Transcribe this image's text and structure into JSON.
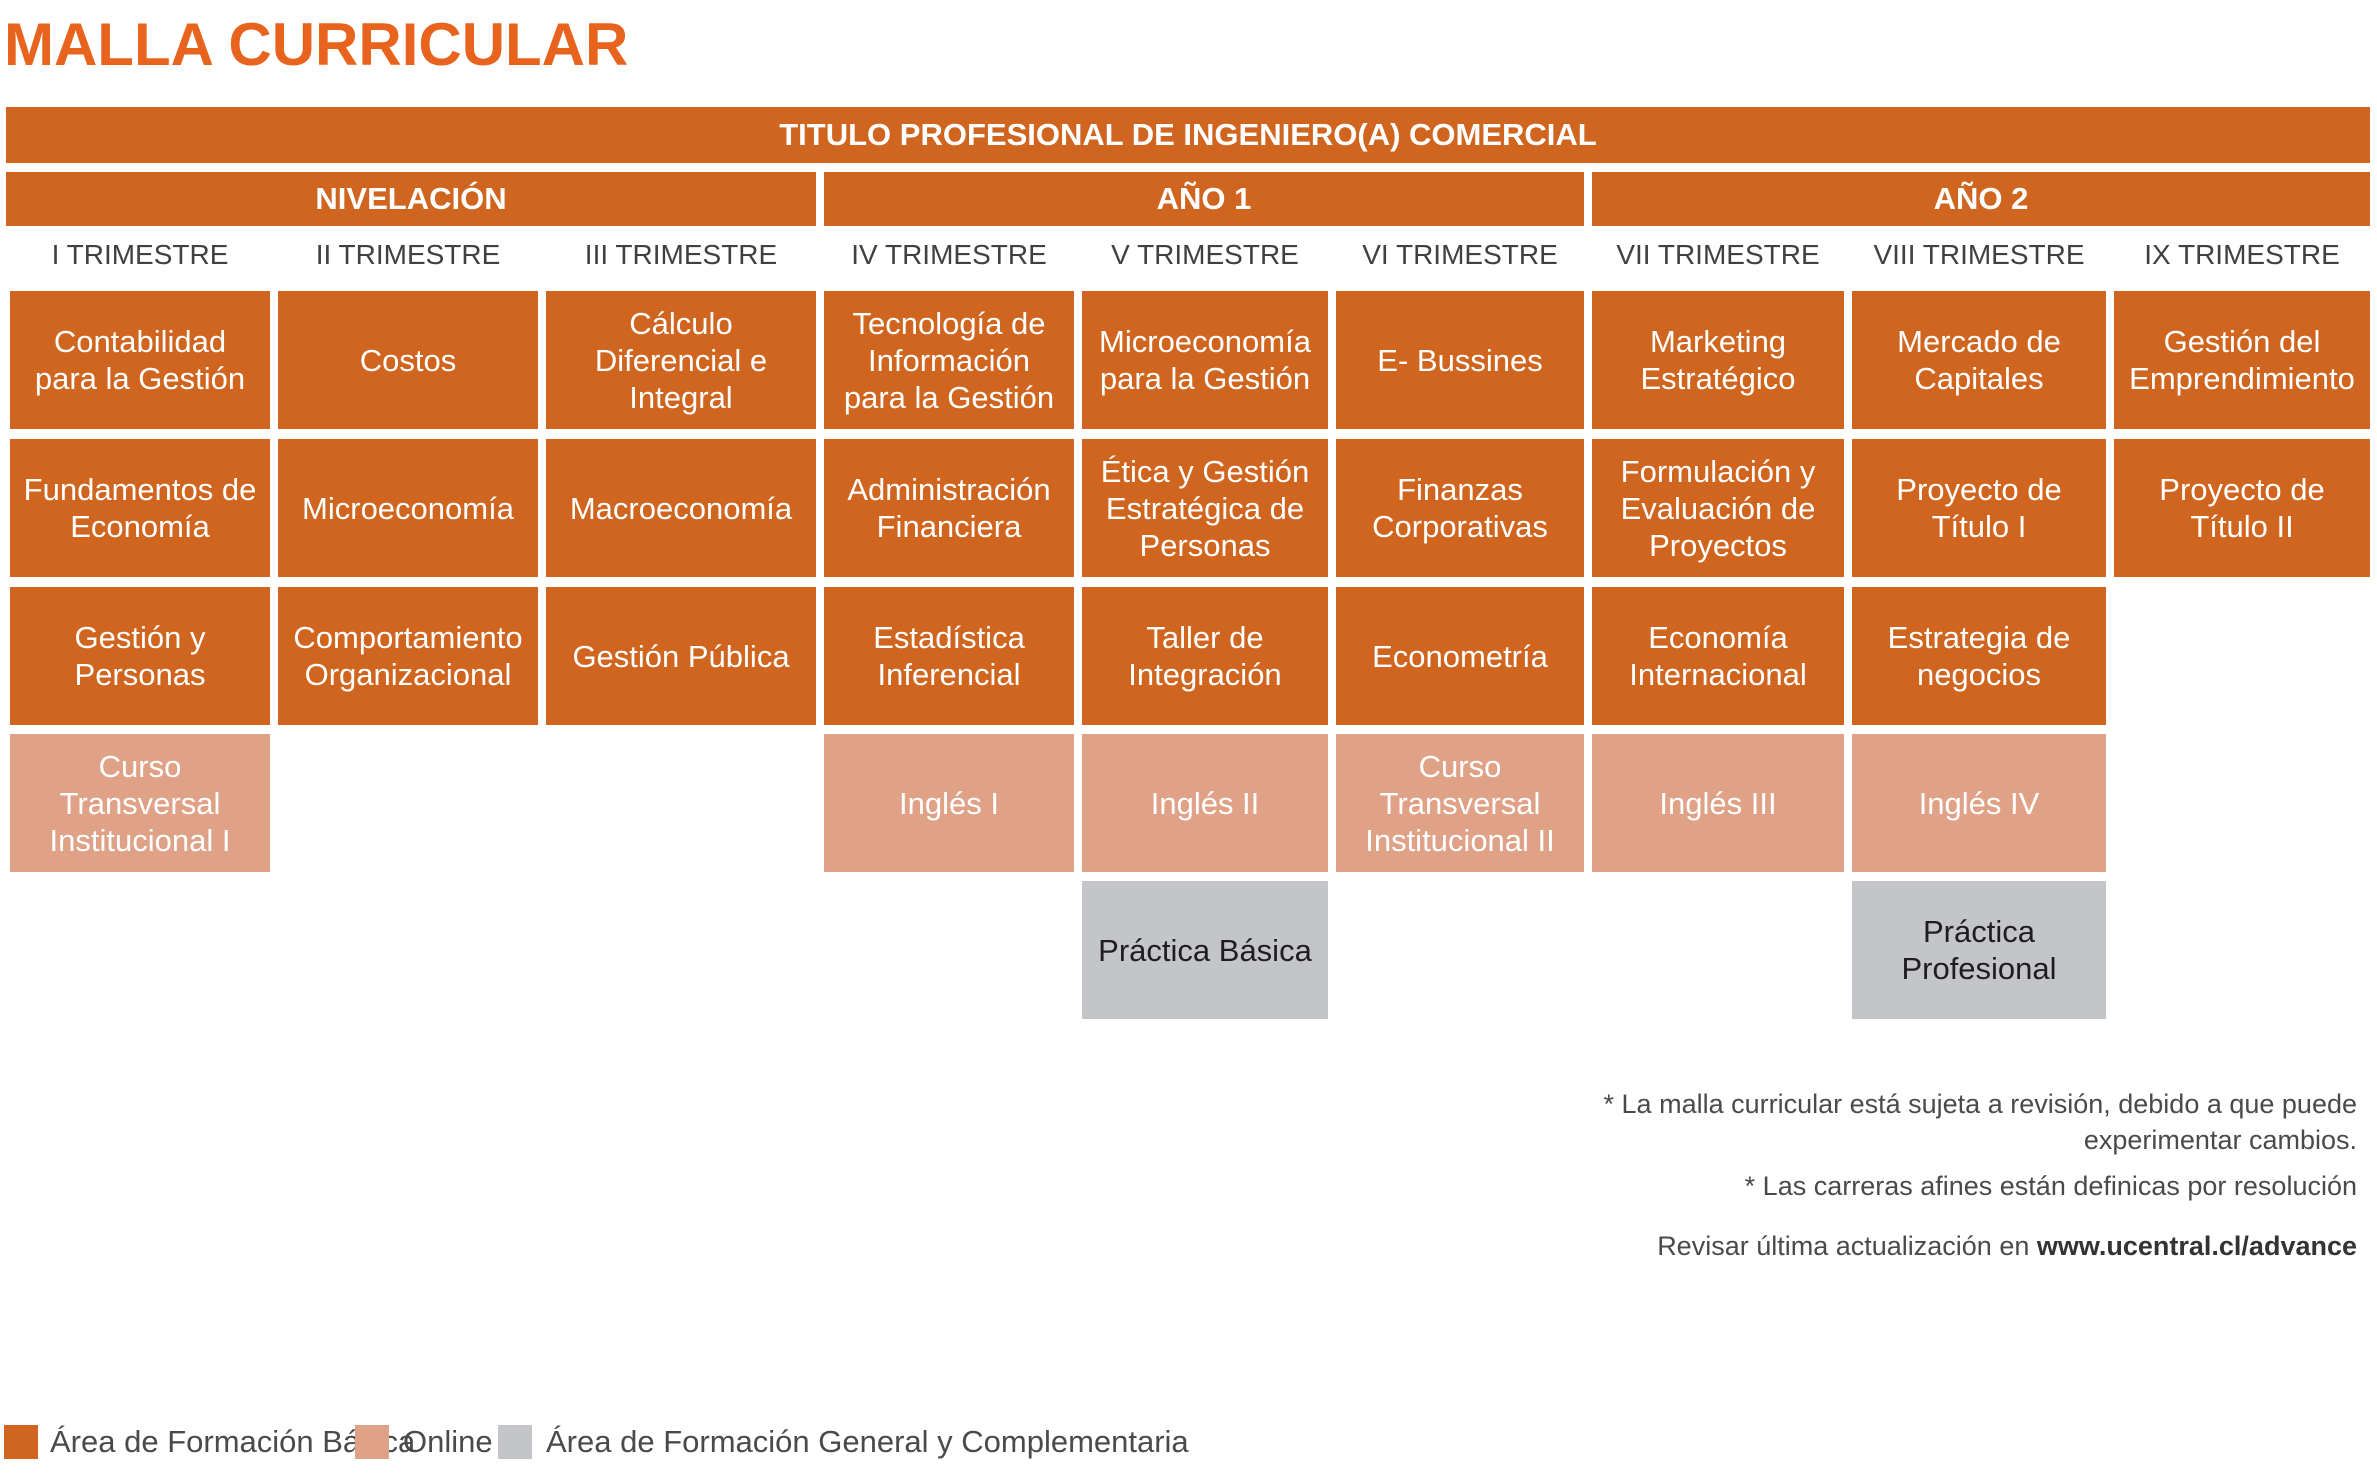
{
  "page_title": "MALLA CURRICULAR",
  "degree_title": "TITULO PROFESIONAL DE INGENIERO(A) COMERCIAL",
  "segments": [
    "NIVELACIÓN",
    "AÑO 1",
    "AÑO 2"
  ],
  "trimesters": [
    "I TRIMESTRE",
    "II TRIMESTRE",
    "III TRIMESTRE",
    "IV TRIMESTRE",
    "V TRIMESTRE",
    "VI TRIMESTRE",
    "VII TRIMESTRE",
    "VIII TRIMESTRE",
    "IX TRIMESTRE"
  ],
  "courses": [
    {
      "col": 0,
      "row": 0,
      "label": "Contabilidad para la Gestión",
      "area": "basic"
    },
    {
      "col": 0,
      "row": 1,
      "label": "Fundamentos de Economía",
      "area": "basic"
    },
    {
      "col": 0,
      "row": 2,
      "label": "Gestión y Personas",
      "area": "basic"
    },
    {
      "col": 0,
      "row": 3,
      "label": "Curso Transversal Institucional I",
      "area": "online"
    },
    {
      "col": 1,
      "row": 0,
      "label": "Costos",
      "area": "basic"
    },
    {
      "col": 1,
      "row": 1,
      "label": "Microeconomía",
      "area": "basic"
    },
    {
      "col": 1,
      "row": 2,
      "label": "Comportamiento Organizacional",
      "area": "basic"
    },
    {
      "col": 2,
      "row": 0,
      "label": "Cálculo Diferencial e Integral",
      "area": "basic"
    },
    {
      "col": 2,
      "row": 1,
      "label": "Macroeconomía",
      "area": "basic"
    },
    {
      "col": 2,
      "row": 2,
      "label": "Gestión Pública",
      "area": "basic"
    },
    {
      "col": 3,
      "row": 0,
      "label": "Tecnología de Información para la Gestión",
      "area": "basic"
    },
    {
      "col": 3,
      "row": 1,
      "label": "Administración Financiera",
      "area": "basic"
    },
    {
      "col": 3,
      "row": 2,
      "label": "Estadística Inferencial",
      "area": "basic"
    },
    {
      "col": 3,
      "row": 3,
      "label": "Inglés I",
      "area": "online"
    },
    {
      "col": 4,
      "row": 0,
      "label": "Microeconomía para la Gestión",
      "area": "basic"
    },
    {
      "col": 4,
      "row": 1,
      "label": "Ética y Gestión Estratégica de Personas",
      "area": "basic"
    },
    {
      "col": 4,
      "row": 2,
      "label": "Taller de Integración",
      "area": "basic"
    },
    {
      "col": 4,
      "row": 3,
      "label": "Inglés II",
      "area": "online"
    },
    {
      "col": 4,
      "row": 4,
      "label": "Práctica Básica",
      "area": "general"
    },
    {
      "col": 5,
      "row": 0,
      "label": "E- Bussines",
      "area": "basic"
    },
    {
      "col": 5,
      "row": 1,
      "label": "Finanzas Corporativas",
      "area": "basic"
    },
    {
      "col": 5,
      "row": 2,
      "label": "Econometría",
      "area": "basic"
    },
    {
      "col": 5,
      "row": 3,
      "label": "Curso Transversal Institucional II",
      "area": "online"
    },
    {
      "col": 6,
      "row": 0,
      "label": "Marketing Estratégico",
      "area": "basic"
    },
    {
      "col": 6,
      "row": 1,
      "label": "Formulación y Evaluación de Proyectos",
      "area": "basic"
    },
    {
      "col": 6,
      "row": 2,
      "label": "Economía Internacional",
      "area": "basic"
    },
    {
      "col": 6,
      "row": 3,
      "label": "Inglés III",
      "area": "online"
    },
    {
      "col": 7,
      "row": 0,
      "label": "Mercado de Capitales",
      "area": "basic"
    },
    {
      "col": 7,
      "row": 1,
      "label": "Proyecto de Título I",
      "area": "basic"
    },
    {
      "col": 7,
      "row": 2,
      "label": "Estrategia de negocios",
      "area": "basic"
    },
    {
      "col": 7,
      "row": 3,
      "label": "Inglés IV",
      "area": "online"
    },
    {
      "col": 7,
      "row": 4,
      "label": "Práctica Profesional",
      "area": "general"
    },
    {
      "col": 8,
      "row": 0,
      "label": "Gestión del Emprendimiento",
      "area": "basic"
    },
    {
      "col": 8,
      "row": 1,
      "label": "Proyecto de Título II",
      "area": "basic"
    }
  ],
  "notes": {
    "revision_line1": "* La malla curricular está sujeta a revisión, debido a que puede",
    "revision_line2": "experimentar cambios.",
    "afines": "* Las carreras afines están definicas por resolución",
    "update_prefix": "Revisar última actualización en ",
    "update_url": "www.ucentral.cl/advance"
  },
  "legend": [
    {
      "label": "Área de Formación Básica",
      "color": "#cf651f"
    },
    {
      "label": "Online",
      "color": "#e0a287"
    },
    {
      "label": "Área de Formación General y Complementaria",
      "color": "#c4c5c9"
    }
  ],
  "colors": {
    "title": "#e8641e",
    "basic": "#cf651f",
    "online": "#e0a287",
    "general": "#c4c5c9"
  }
}
